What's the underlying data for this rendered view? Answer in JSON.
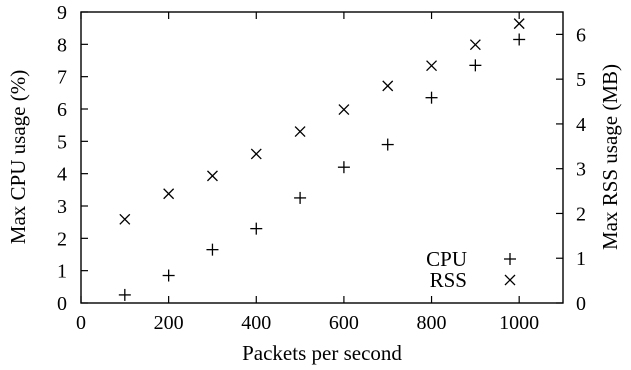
{
  "chart_data": {
    "type": "scatter",
    "title": "",
    "xlabel": "Packets per second",
    "ylabel": "Max CPU usage (%)",
    "y2label": "Max RSS usage (MB)",
    "xlim": [
      0,
      1100
    ],
    "ylim": [
      0,
      9
    ],
    "y2lim": [
      0,
      6.5
    ],
    "x_ticks": [
      0,
      200,
      400,
      600,
      800,
      1000
    ],
    "y_ticks": [
      0,
      1,
      2,
      3,
      4,
      5,
      6,
      7,
      8,
      9
    ],
    "y2_ticks": [
      0,
      1,
      2,
      3,
      4,
      5,
      6
    ],
    "grid": false,
    "legend_position": "bottom-right",
    "series": [
      {
        "name": "CPU",
        "marker": "plus",
        "axis": "left",
        "x": [
          100,
          200,
          300,
          400,
          500,
          600,
          700,
          800,
          900,
          1000
        ],
        "y": [
          0.25,
          0.85,
          1.65,
          2.3,
          3.25,
          4.2,
          4.9,
          6.35,
          7.35,
          8.15
        ]
      },
      {
        "name": "RSS",
        "marker": "cross",
        "axis": "right",
        "x": [
          100,
          200,
          300,
          400,
          500,
          600,
          700,
          800,
          900,
          1000
        ],
        "y": [
          1.87,
          2.44,
          2.84,
          3.33,
          3.83,
          4.32,
          4.85,
          5.3,
          5.77,
          6.24
        ]
      }
    ]
  }
}
